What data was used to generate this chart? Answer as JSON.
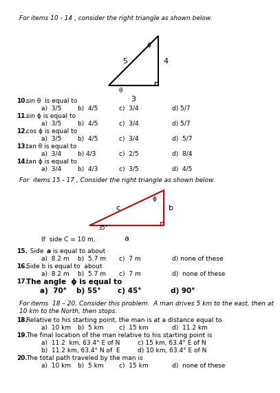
{
  "title1": "For items 10 - 14 , consider the right triangle as shown below.",
  "title2": "For  items 15 - 17 , Consider the right triangle as shown below.",
  "side_C_note": "If  side C = 10 m,",
  "bg_color": "#ffffff",
  "text_color": "#000000",
  "triangle1_color": "#000000",
  "triangle2_color": "#cc0000",
  "questions": [
    {
      "num": "10.",
      "text": "sin θ  is equal to",
      "a": "a)  3/5",
      "b": "b)  4/5",
      "c": "c)  3/4",
      "d": "d) 5/7"
    },
    {
      "num": "11.",
      "text": "sin ϕ is equal to",
      "a": "a)  3/5",
      "b": "b)  4/5",
      "c": "c)  3/4",
      "d": "d) 5/7"
    },
    {
      "num": "12.",
      "text": "cos ϕ is equal to",
      "a": "a)  3/5",
      "b": "b)  4/5",
      "c": "c)  3/4",
      "d": "d)  5/7"
    },
    {
      "num": "13.",
      "text": "tan θ is equal to",
      "a": "a)  3/4",
      "b": "b) 4/3",
      "c": "c)  2/5",
      "d": "d)  8/4"
    },
    {
      "num": "14.",
      "text": "tan ϕ is equal to",
      "a": "a)  3/4",
      "b": "b)  4/3",
      "c": "c)  3/5",
      "d": "d)  4/5"
    }
  ],
  "q15_a": "a)  8.2 m",
  "q15_b": "b)  5.7 m",
  "q15_c": "c)  7 m",
  "q15_d": "d) none of these",
  "q16_text": "Side b is equal to  about",
  "q16_a": "a)  8.2 m",
  "q16_b": "b)  5.7 m",
  "q16_c": "c)  7 m",
  "q16_d": "d)  none of these",
  "q17_a": "a)  70°",
  "q17_b": "b) 55°",
  "q17_c": "c) 45°",
  "q17_d": "d) 90°",
  "header3_line1": "For items  18 – 20, Consider this problem.  A man drives 5 km to the east, then at",
  "header3_line2": "10 km to the North, then stops.",
  "q18_text": "Relative to his starting point, the man is at a distance equal to",
  "q18_a": "a)  10 km",
  "q18_b": "b)  5 km",
  "q18_c": "c)  15 km",
  "q18_d": "d)  11.2 km",
  "q19_text": "The final location of the man relative to his starting point is",
  "q19_a": "a)  11.2  km, 63.4° E of N",
  "q19_b": "b)  11.2 km, 63.4° N of  E",
  "q19_c": "c) 15 km, 63.4° E of N",
  "q19_d": "d) 10 km, 63.4° E of N",
  "q20_text": "The total path traveled by the man is",
  "q20_a": "a)  10 km",
  "q20_b": "b)  5 km",
  "q20_c": "c)  15 km",
  "q20_d": "d)  none of these"
}
